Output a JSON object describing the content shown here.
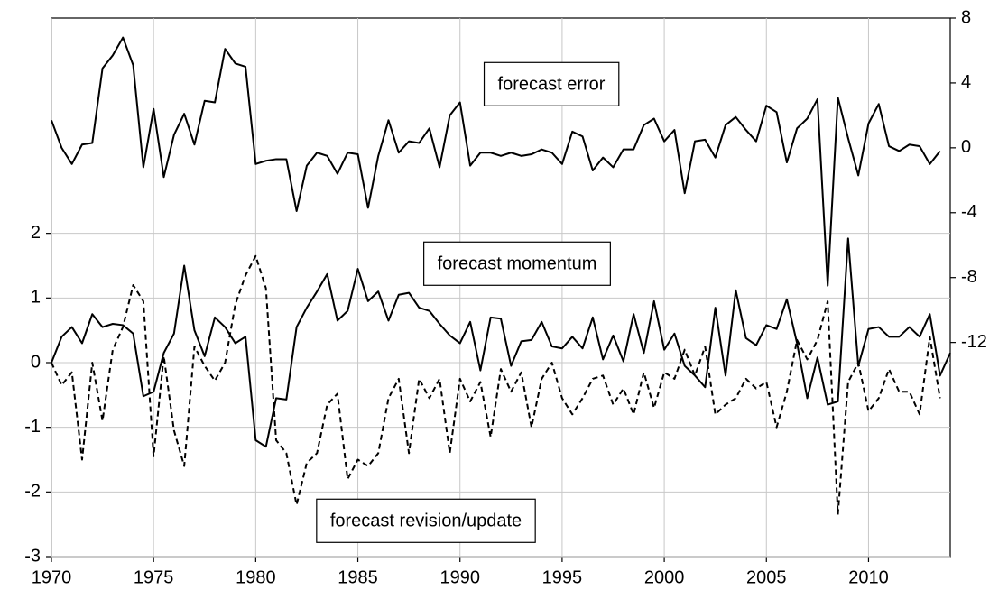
{
  "chart_data": {
    "type": "line",
    "x": [
      1970,
      1970.5,
      1971,
      1971.5,
      1972,
      1972.5,
      1973,
      1973.5,
      1974,
      1974.5,
      1975,
      1975.5,
      1976,
      1976.5,
      1977,
      1977.5,
      1978,
      1978.5,
      1979,
      1979.5,
      1980,
      1980.5,
      1981,
      1981.5,
      1982,
      1982.5,
      1983,
      1983.5,
      1984,
      1984.5,
      1985,
      1985.5,
      1986,
      1986.5,
      1987,
      1987.5,
      1988,
      1988.5,
      1989,
      1989.5,
      1990,
      1990.5,
      1991,
      1991.5,
      1992,
      1992.5,
      1993,
      1993.5,
      1994,
      1994.5,
      1995,
      1995.5,
      1996,
      1996.5,
      1997,
      1997.5,
      1998,
      1998.5,
      1999,
      1999.5,
      2000,
      2000.5,
      2001,
      2001.5,
      2002,
      2002.5,
      2003,
      2003.5,
      2004,
      2004.5,
      2005,
      2005.5,
      2006,
      2006.5,
      2007,
      2007.5,
      2008,
      2008.5,
      2009,
      2009.5,
      2010,
      2010.5,
      2011,
      2011.5,
      2012,
      2012.5,
      2013,
      2013.5,
      2014
    ],
    "xlim": [
      1970,
      2014
    ],
    "xticks": [
      1970,
      1975,
      1980,
      1985,
      1990,
      1995,
      2000,
      2005,
      2010
    ],
    "ylim": [
      -3,
      5.33
    ],
    "yticks": [
      -3,
      -2,
      -1,
      0,
      1,
      2
    ],
    "y2lim": [
      -25.2,
      8
    ],
    "y2ticks": [
      -12,
      -8,
      -4,
      0,
      4,
      8
    ],
    "grid": true,
    "series": [
      {
        "name": "forecast error",
        "axis": "y2",
        "color": "#000000",
        "dash": false,
        "values": [
          1.7,
          0,
          -1,
          0.2,
          0.3,
          4.9,
          5.7,
          6.8,
          5.1,
          -1.2,
          2.4,
          -1.8,
          0.8,
          2.1,
          0.2,
          2.9,
          2.8,
          6.1,
          5.2,
          5.0,
          -1,
          -0.8,
          -0.7,
          -0.7,
          -3.9,
          -1.1,
          -0.3,
          -0.5,
          -1.6,
          -0.3,
          -0.4,
          -3.7,
          -0.5,
          1.7,
          -0.3,
          0.4,
          0.3,
          1.2,
          -1.2,
          2,
          2.8,
          -1.1,
          -0.3,
          -0.3,
          -0.5,
          -0.3,
          -0.5,
          -0.4,
          -0.1,
          -0.3,
          -1,
          1,
          0.7,
          -1.4,
          -0.6,
          -1.2,
          -0.1,
          -0.1,
          1.4,
          1.8,
          0.4,
          1.1,
          -2.8,
          0.4,
          0.5,
          -0.6,
          1.4,
          1.9,
          1.1,
          0.4,
          2.6,
          2.2,
          -0.9,
          1.2,
          1.8,
          3.0,
          -8.5,
          3.1,
          0.6,
          -1.7,
          1.5,
          2.7,
          0.1,
          -0.2,
          0.2,
          0.1,
          -1,
          -0.2,
          null
        ]
      },
      {
        "name": "forecast momentum",
        "axis": "y",
        "color": "#000000",
        "dash": false,
        "values": [
          0,
          0.4,
          0.55,
          0.3,
          0.75,
          0.55,
          0.6,
          0.58,
          0.45,
          -0.52,
          -0.45,
          0.15,
          0.45,
          1.5,
          0.5,
          0.1,
          0.7,
          0.55,
          0.3,
          0.4,
          -1.2,
          -1.3,
          -0.55,
          -0.57,
          0.55,
          0.85,
          1.1,
          1.37,
          0.65,
          0.8,
          1.45,
          0.95,
          1.1,
          0.65,
          1.05,
          1.08,
          0.85,
          0.8,
          0.6,
          0.42,
          0.3,
          0.63,
          -0.12,
          0.7,
          0.68,
          -0.05,
          0.33,
          0.35,
          0.63,
          0.25,
          0.22,
          0.4,
          0.22,
          0.7,
          0.05,
          0.42,
          0.02,
          0.75,
          0.15,
          0.95,
          0.2,
          0.45,
          -0.05,
          -0.2,
          -0.38,
          0.85,
          -0.2,
          1.12,
          0.38,
          0.27,
          0.58,
          0.52,
          0.98,
          0.3,
          -0.55,
          0.08,
          -0.65,
          -0.6,
          1.92,
          -0.05,
          0.52,
          0.55,
          0.4,
          0.4,
          0.55,
          0.4,
          0.75,
          -0.2,
          0.15
        ]
      },
      {
        "name": "forecast revision/update",
        "axis": "y",
        "color": "#000000",
        "dash": true,
        "values": [
          0,
          -0.35,
          -0.15,
          -1.5,
          0,
          -0.9,
          0.2,
          0.55,
          1.2,
          0.95,
          -1.45,
          0.1,
          -1.05,
          -1.6,
          0.25,
          -0.05,
          -0.28,
          0,
          0.9,
          1.35,
          1.65,
          1.15,
          -1.2,
          -1.4,
          -2.2,
          -1.55,
          -1.4,
          -0.65,
          -0.48,
          -1.8,
          -1.5,
          -1.6,
          -1.4,
          -0.55,
          -0.25,
          -1.4,
          -0.25,
          -0.55,
          -0.25,
          -1.4,
          -0.25,
          -0.6,
          -0.3,
          -1.15,
          -0.1,
          -0.45,
          -0.15,
          -1.0,
          -0.25,
          0,
          -0.55,
          -0.8,
          -0.55,
          -0.25,
          -0.2,
          -0.65,
          -0.4,
          -0.8,
          -0.15,
          -0.7,
          -0.15,
          -0.25,
          0.2,
          -0.2,
          0.25,
          -0.8,
          -0.65,
          -0.55,
          -0.25,
          -0.4,
          -0.3,
          -1.0,
          -0.45,
          0.35,
          0.05,
          0.35,
          0.95,
          -2.35,
          -0.3,
          0,
          -0.75,
          -0.55,
          -0.1,
          -0.45,
          -0.45,
          -0.8,
          0.4,
          -0.55,
          null
        ]
      }
    ]
  }
}
